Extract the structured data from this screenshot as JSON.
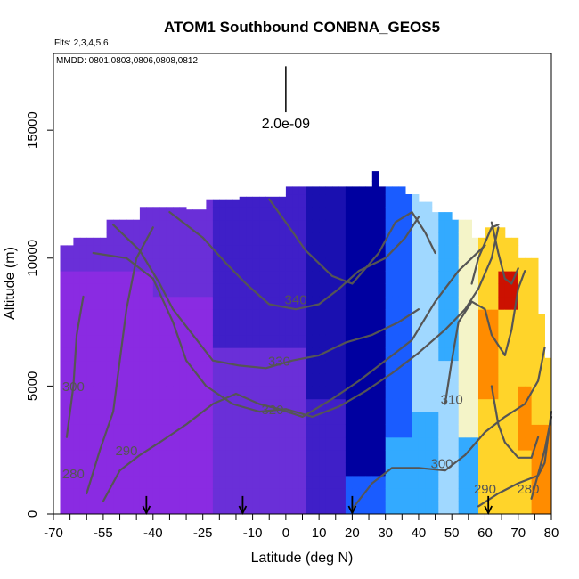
{
  "chart_data": {
    "type": "heatmap",
    "title": "ATOM1 Southbound CONBNA_GEOS5",
    "flights_note": "Flts: 2,3,4,5,6",
    "dates_note": "MMDD: 0801,0803,0806,0808,0812",
    "xlabel": "Latitude (deg N)",
    "ylabel": "Altitude (m)",
    "xlim": [
      -70,
      80
    ],
    "ylim": [
      0,
      18000
    ],
    "x_ticks": [
      -70,
      -55,
      -40,
      -25,
      -10,
      0,
      10,
      20,
      30,
      40,
      50,
      60,
      70,
      80
    ],
    "y_ticks": [
      0,
      5000,
      10000,
      15000
    ],
    "scale_label": "2.0e-09",
    "scale_bar": {
      "lat": 0,
      "alt_bottom": 15700,
      "alt_top": 17500
    },
    "colors": {
      "deep_purple": "#8a2be2",
      "purple": "#6a2fd8",
      "indigo": "#3f1fc8",
      "navy": "#1a10b0",
      "dark_blue": "#0000a0",
      "blue": "#1a5cff",
      "sky": "#33aaff",
      "light_blue": "#a0d8ff",
      "pale": "#f4f4c8",
      "yellow": "#ffd42a",
      "orange": "#ff8c00",
      "red": "#cc1100",
      "contour": "#555555"
    },
    "profile_arrows": [
      -42,
      -13,
      20,
      61
    ],
    "contour_labels": [
      {
        "text": "340",
        "lat": 3,
        "alt": 8200
      },
      {
        "text": "330",
        "lat": -2,
        "alt": 5800
      },
      {
        "text": "320",
        "lat": -4,
        "alt": 3900
      },
      {
        "text": "310",
        "lat": 50,
        "alt": 4300
      },
      {
        "text": "300",
        "lat": 47,
        "alt": 1800
      },
      {
        "text": "290",
        "lat": -48,
        "alt": 2300
      },
      {
        "text": "290",
        "lat": 60,
        "alt": 800
      },
      {
        "text": "280",
        "lat": -64,
        "alt": 1400
      },
      {
        "text": "280",
        "lat": 73,
        "alt": 800
      },
      {
        "text": "300",
        "lat": -64,
        "alt": 4800
      }
    ]
  }
}
